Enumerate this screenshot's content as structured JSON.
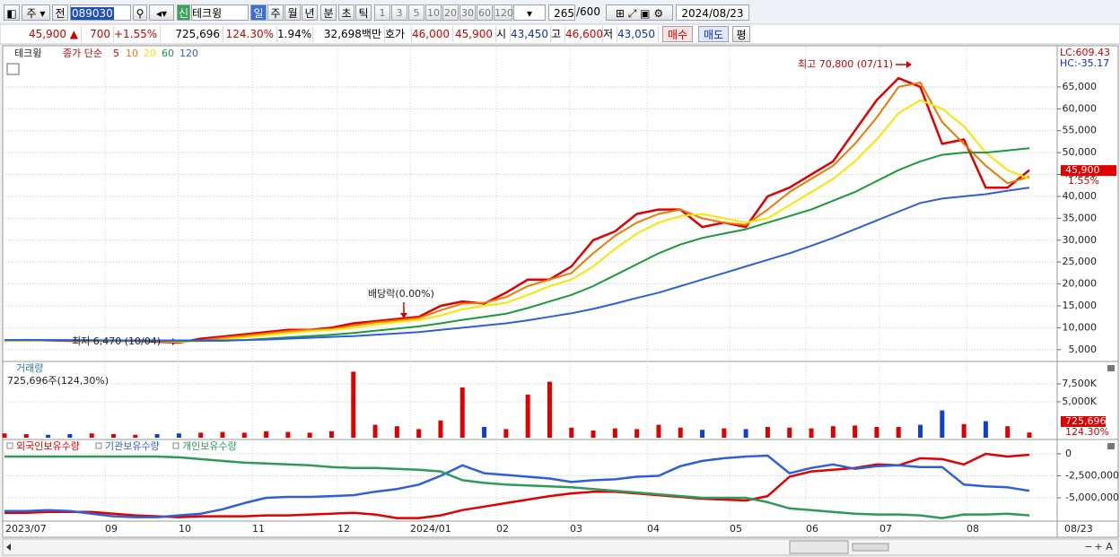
{
  "toolbar": {
    "market": "주",
    "prev": "전",
    "code": "089030",
    "badge": "신",
    "name": "테크윙",
    "periods": [
      "일",
      "주",
      "월",
      "년",
      "분",
      "초",
      "틱"
    ],
    "intervals": [
      "1",
      "3",
      "5",
      "10",
      "20",
      "30",
      "60",
      "120"
    ],
    "count": 265,
    "max_count": "/600",
    "date": "2024/08/23"
  },
  "quote": {
    "price": "45,900 ▲",
    "change": "700",
    "change_pct": "+1.55%",
    "volume": "725,696",
    "volume_ratio": "124.30%",
    "turnover": "1.94%",
    "amount": "32,698백만",
    "ask_label": "호가",
    "ask": "46,000",
    "bid": "45,900",
    "open_label": "시",
    "open": "43,450",
    "high_label": "고",
    "high": "46,600",
    "low_label": "저",
    "low": "43,050",
    "buy": "매수",
    "sell": "매도",
    "avg": "평"
  },
  "x_axis": {
    "labels": [
      "2023/07",
      "09",
      "10",
      "11",
      "12",
      "2024/01",
      "02",
      "03",
      "04",
      "05",
      "06",
      "07",
      "08",
      "08/23"
    ]
  },
  "scrollbar": {
    "buttons": [
      "−",
      "+",
      "A"
    ]
  },
  "chart_data": [
    {
      "type": "line",
      "title": "테크윙",
      "legend_label": "종가 단순",
      "lc": "LC:609.43",
      "hc": "HC:-35.17",
      "ylim": [
        2500,
        74200
      ],
      "yticks": [
        {
          "value": 5000,
          "label": "5,000"
        },
        {
          "value": 10000,
          "label": "10,000"
        },
        {
          "value": 15000,
          "label": "15,000"
        },
        {
          "value": 20000,
          "label": "20,000"
        },
        {
          "value": 25000,
          "label": "25,000"
        },
        {
          "value": 30000,
          "label": "30,000"
        },
        {
          "value": 35000,
          "label": "35,000"
        },
        {
          "value": 40000,
          "label": "40,000"
        },
        {
          "value": 45000,
          "label": "45,000"
        },
        {
          "value": 50000,
          "label": "50,000"
        },
        {
          "value": 55000,
          "label": "55,000"
        },
        {
          "value": 60000,
          "label": "60,000"
        },
        {
          "value": 65000,
          "label": "65,000"
        }
      ],
      "grid": true,
      "last_price": {
        "value": 45900,
        "label": "45,900"
      },
      "last_change": "1.55%",
      "annotations": [
        {
          "text": "최고 70,800 (07/11)",
          "color": "#d00000"
        },
        {
          "text": "최저 6,470 (10/04)",
          "color": "#202020"
        },
        {
          "text": "배당락(0.00%)",
          "color": "#202020"
        }
      ],
      "series": [
        {
          "name": "5",
          "color": "#e00000",
          "values": [
            7000,
            7200,
            7100,
            7000,
            7000,
            7000,
            7000,
            6800,
            6600,
            7500,
            8000,
            8500,
            9000,
            9500,
            9500,
            10000,
            11000,
            11500,
            12000,
            12500,
            15000,
            16000,
            15500,
            18000,
            21000,
            21000,
            24000,
            30000,
            32000,
            36000,
            37000,
            37000,
            33000,
            34000,
            33000,
            40000,
            42000,
            45000,
            48000,
            55000,
            62000,
            67000,
            65000,
            52000,
            53000,
            42000,
            42000,
            46000
          ]
        },
        {
          "name": "10",
          "color": "#f07800",
          "values": [
            7000,
            7100,
            7150,
            7050,
            7000,
            7000,
            7000,
            6900,
            6700,
            7100,
            7700,
            8200,
            8700,
            9200,
            9500,
            9700,
            10500,
            11200,
            11700,
            12200,
            14000,
            15500,
            15700,
            17000,
            19500,
            21000,
            22500,
            27000,
            31000,
            34000,
            36000,
            37000,
            35000,
            34000,
            33500,
            37000,
            41000,
            44000,
            47000,
            52000,
            58000,
            65000,
            66000,
            57000,
            52000,
            47000,
            43000,
            44500
          ]
        },
        {
          "name": "20",
          "color": "#f5e800",
          "values": [
            7000,
            7000,
            7100,
            7100,
            7050,
            7000,
            7000,
            7000,
            6850,
            6900,
            7300,
            7800,
            8300,
            8800,
            9200,
            9500,
            10000,
            10700,
            11300,
            11800,
            12800,
            14200,
            15000,
            15700,
            17500,
            19500,
            21000,
            24000,
            28000,
            31500,
            34000,
            35500,
            36000,
            35000,
            34000,
            35000,
            38000,
            41000,
            44000,
            48000,
            53000,
            59000,
            62000,
            60000,
            56000,
            50000,
            46000,
            44000
          ]
        },
        {
          "name": "60",
          "color": "#1a9a3a",
          "values": [
            7200,
            7200,
            7150,
            7100,
            7100,
            7050,
            7000,
            7000,
            7000,
            7000,
            7000,
            7200,
            7500,
            7800,
            8100,
            8400,
            8800,
            9300,
            9800,
            10300,
            11000,
            11800,
            12500,
            13200,
            14500,
            16000,
            17500,
            19500,
            22000,
            24500,
            27000,
            29000,
            30500,
            31500,
            32500,
            34000,
            35500,
            37000,
            39000,
            41000,
            43500,
            46000,
            48000,
            49500,
            50000,
            50000,
            50500,
            51000
          ]
        },
        {
          "name": "120",
          "color": "#2f5fd8",
          "values": [
            7200,
            7200,
            7200,
            7200,
            7150,
            7100,
            7100,
            7100,
            7100,
            7100,
            7100,
            7200,
            7300,
            7500,
            7700,
            7900,
            8100,
            8400,
            8700,
            9000,
            9500,
            10000,
            10500,
            11000,
            11700,
            12500,
            13300,
            14300,
            15500,
            16800,
            18000,
            19500,
            21000,
            22500,
            24000,
            25500,
            27000,
            28700,
            30500,
            32500,
            34500,
            36500,
            38500,
            39500,
            40000,
            40500,
            41300,
            42000
          ]
        }
      ]
    },
    {
      "type": "bar",
      "title": "거래량",
      "subtitle": "725,696주(124,30%)",
      "ylim": [
        0,
        10250
      ],
      "yticks": [
        {
          "value": 5000,
          "label": "5,000K"
        },
        {
          "value": 7500,
          "label": "7,500K"
        }
      ],
      "grid": true,
      "up_color": "#e00000",
      "down_color": "#1040d0",
      "last_value": {
        "value": 725.696,
        "label": "725,696"
      },
      "last_ratio": "124.30%",
      "values": [
        600,
        500,
        400,
        500,
        600,
        500,
        400,
        500,
        600,
        700,
        800,
        700,
        900,
        800,
        700,
        900,
        9200,
        1800,
        1600,
        1200,
        2400,
        7000,
        1500,
        1200,
        6000,
        7800,
        1400,
        1000,
        1300,
        1200,
        1800,
        1400,
        1100,
        1300,
        1200,
        1500,
        1400,
        1300,
        1600,
        1700,
        1500,
        1500,
        1800,
        3800,
        1900,
        2300,
        1600,
        725.696
      ]
    },
    {
      "type": "line",
      "ylim": [
        -7550000,
        1330000
      ],
      "yticks": [
        0,
        {
          "value": -2500000,
          "label": "-2,500,000"
        },
        {
          "value": -5000000,
          "label": "-5,000,000"
        }
      ],
      "grid": true,
      "series": [
        {
          "name": "외국인보유수량",
          "color": "#e00000",
          "values": [
            -6700000,
            -6700000,
            -6600000,
            -6600000,
            -6600000,
            -6800000,
            -7000000,
            -7100000,
            -7200000,
            -7100000,
            -7100000,
            -7100000,
            -7000000,
            -7000000,
            -6900000,
            -6800000,
            -6700000,
            -6900000,
            -7300000,
            -7300000,
            -7000000,
            -6400000,
            -6000000,
            -5600000,
            -5200000,
            -4800000,
            -4500000,
            -4300000,
            -4300000,
            -4500000,
            -4700000,
            -4900000,
            -5100000,
            -5200000,
            -5300000,
            -4800000,
            -2600000,
            -2000000,
            -1800000,
            -1600000,
            -1200000,
            -1300000,
            -500000,
            -600000,
            -1200000,
            0,
            -300000,
            -100000
          ]
        },
        {
          "name": "기관보유수량",
          "color": "#2f5fd8",
          "values": [
            -6500000,
            -6500000,
            -6400000,
            -6500000,
            -6800000,
            -7100000,
            -7200000,
            -7200000,
            -7000000,
            -6800000,
            -6300000,
            -5600000,
            -5000000,
            -4900000,
            -4900000,
            -4800000,
            -4700000,
            -4300000,
            -4000000,
            -3500000,
            -2500000,
            -1300000,
            -2200000,
            -2400000,
            -2600000,
            -2800000,
            -3200000,
            -3000000,
            -2900000,
            -2600000,
            -2500000,
            -1400000,
            -800000,
            -500000,
            -300000,
            -200000,
            -2200000,
            -1600000,
            -1200000,
            -1700000,
            -1400000,
            -1300000,
            -1500000,
            -1500000,
            -3500000,
            -3700000,
            -3800000,
            -4200000
          ]
        },
        {
          "name": "개인보유수량",
          "color": "#2e9a5a",
          "values": [
            -300000,
            -300000,
            -300000,
            -300000,
            -300000,
            -300000,
            -300000,
            -300000,
            -400000,
            -600000,
            -800000,
            -1000000,
            -1100000,
            -1200000,
            -1300000,
            -1500000,
            -1600000,
            -1600000,
            -1700000,
            -1800000,
            -2000000,
            -3000000,
            -3300000,
            -3500000,
            -3600000,
            -3700000,
            -3800000,
            -4000000,
            -4200000,
            -4400000,
            -4600000,
            -4800000,
            -5000000,
            -5000000,
            -5000000,
            -5500000,
            -6200000,
            -6400000,
            -6600000,
            -6800000,
            -6900000,
            -6900000,
            -7000000,
            -7300000,
            -6900000,
            -6900000,
            -6800000,
            -7000000
          ]
        }
      ]
    }
  ]
}
